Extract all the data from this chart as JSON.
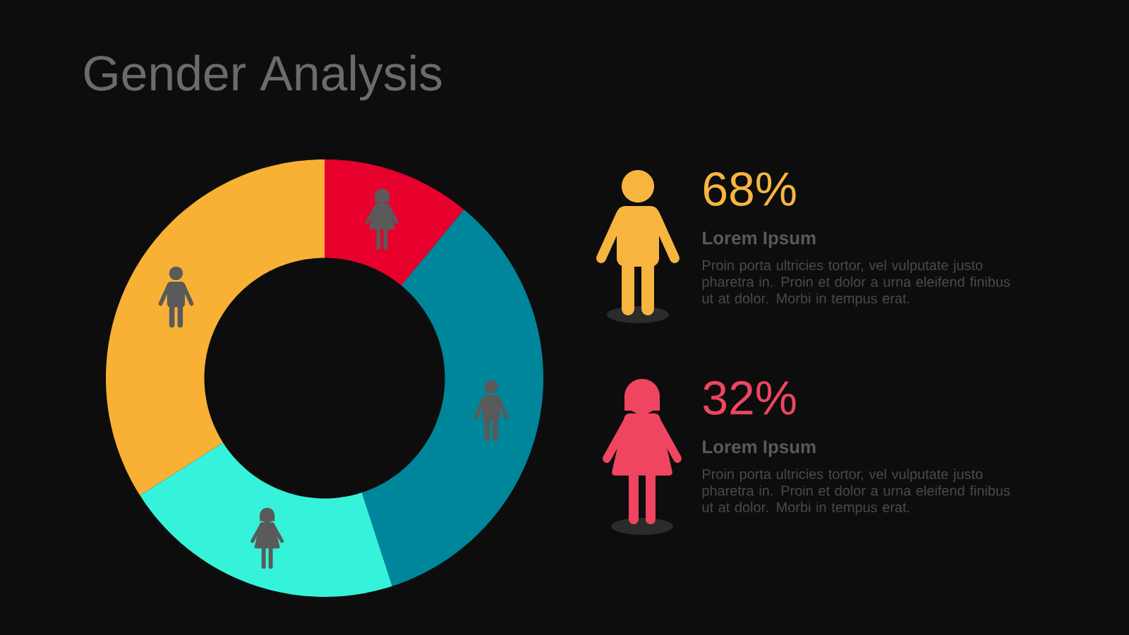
{
  "chart_data": [
    {
      "type": "donut",
      "title": "Gender Analysis",
      "categories": [
        null,
        null,
        null,
        null
      ],
      "values": [
        11,
        34,
        21,
        34
      ],
      "colors": [
        "#e8002d",
        "#00869a",
        "#35f2da",
        "#f8b135"
      ]
    },
    {
      "type": "other",
      "annotations": [
        "68%",
        "Lorem Ipsum",
        "Proin porta ultricies tortor, vel vulputate justo pharetra in. Proin et dolor a urna eleifend finibus ut at dolor. Morbi in tempus erat.",
        "32%",
        "Lorem Ipsum",
        "Proin porta ultricies tortor, vel vulputate justo pharetra in. Proin et dolor a urna eleifend finibus ut at dolor. Morbi in tempus erat."
      ]
    }
  ]
}
